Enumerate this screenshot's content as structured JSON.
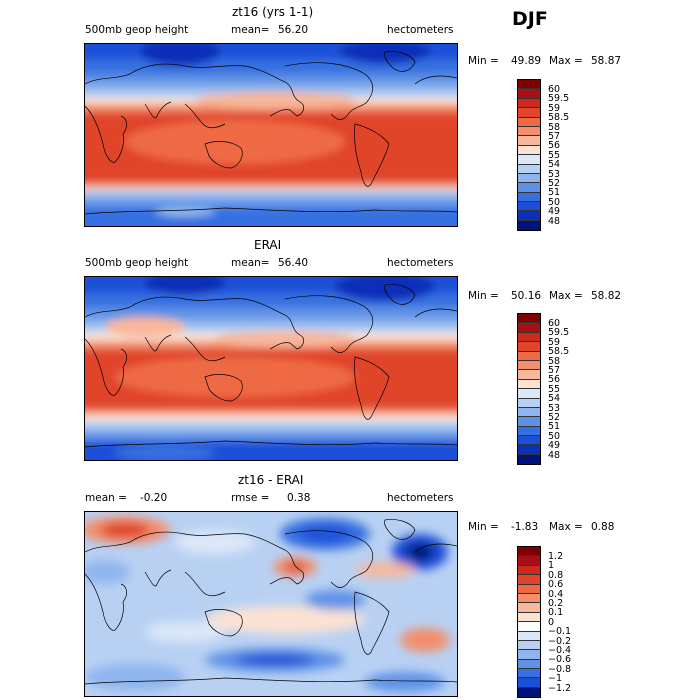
{
  "season": "DJF",
  "panels": [
    {
      "title": "zt16 (yrs 1-1)",
      "left_label": "500mb geop height",
      "mean_label": "mean=",
      "mean_value": "56.20",
      "units": "hectometers",
      "min_label": "Min =",
      "min_value": "49.89",
      "max_label": "Max =",
      "max_value": "58.87",
      "colorbar_labels": [
        "60",
        "59.5",
        "59",
        "58.5",
        "58",
        "57",
        "56",
        "55",
        "54",
        "53",
        "52",
        "51",
        "50",
        "49",
        "48"
      ]
    },
    {
      "title": "ERAI",
      "left_label": "500mb geop height",
      "mean_label": "mean=",
      "mean_value": "56.40",
      "units": "hectometers",
      "min_label": "Min =",
      "min_value": "50.16",
      "max_label": "Max =",
      "max_value": "58.82",
      "colorbar_labels": [
        "60",
        "59.5",
        "59",
        "58.5",
        "58",
        "57",
        "56",
        "55",
        "54",
        "53",
        "52",
        "51",
        "50",
        "49",
        "48"
      ]
    },
    {
      "title": "zt16 - ERAI",
      "left_label": "mean =",
      "mean_value": "-0.20",
      "rmse_label": "rmse =",
      "rmse_value": "0.38",
      "units": "hectometers",
      "min_label": "Min =",
      "min_value": "-1.83",
      "max_label": "Max =",
      "max_value": "0.88",
      "colorbar_labels": [
        "1.2",
        "1",
        "0.8",
        "0.6",
        "0.4",
        "0.2",
        "0.1",
        "0",
        "−0.1",
        "−0.2",
        "−0.4",
        "−0.6",
        "−0.8",
        "−1",
        "−1.2"
      ]
    }
  ],
  "colors": {
    "abs_scale": [
      "#7f0000",
      "#a50f15",
      "#cb2a1c",
      "#e0452a",
      "#ee6a45",
      "#f38f6c",
      "#f8b89b",
      "#fce2d3",
      "#dbe8f8",
      "#b8d1f3",
      "#8fb5ee",
      "#5f92e6",
      "#356fe0",
      "#1b4fd8",
      "#0a2fb8",
      "#00137a"
    ],
    "diff_scale": [
      "#7f0000",
      "#a50f15",
      "#cb2a1c",
      "#e0452a",
      "#ee6a45",
      "#f38f6c",
      "#f8b89b",
      "#fce2d3",
      "#ffffff",
      "#dbe8f8",
      "#b8d1f3",
      "#8fb5ee",
      "#5f92e6",
      "#356fe0",
      "#1b4fd8",
      "#00137a"
    ],
    "coastline": "#000000"
  }
}
